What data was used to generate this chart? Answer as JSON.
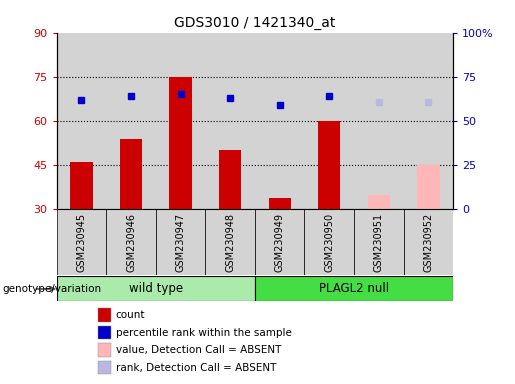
{
  "title": "GDS3010 / 1421340_at",
  "samples": [
    "GSM230945",
    "GSM230946",
    "GSM230947",
    "GSM230948",
    "GSM230949",
    "GSM230950",
    "GSM230951",
    "GSM230952"
  ],
  "bar_values": [
    46,
    54,
    75,
    50,
    34,
    60,
    null,
    null
  ],
  "bar_absent_values": [
    null,
    null,
    null,
    null,
    null,
    null,
    35,
    45
  ],
  "rank_values": [
    62,
    64,
    65,
    63,
    59,
    64,
    null,
    null
  ],
  "rank_absent_values": [
    null,
    null,
    null,
    null,
    null,
    null,
    61,
    61
  ],
  "bar_color": "#cc0000",
  "bar_absent_color": "#ffb6b6",
  "rank_color": "#0000cc",
  "rank_absent_color": "#b8b8e0",
  "ylim_left": [
    30,
    90
  ],
  "ylim_right": [
    0,
    100
  ],
  "left_ticks": [
    30,
    45,
    60,
    75,
    90
  ],
  "right_ticks": [
    0,
    25,
    50,
    75,
    100
  ],
  "right_tick_labels": [
    "0",
    "25",
    "50",
    "75",
    "100%"
  ],
  "groups": [
    {
      "label": "wild type",
      "spans": [
        0,
        3
      ],
      "color": "#aaeaaa"
    },
    {
      "label": "PLAGL2 null",
      "spans": [
        4,
        7
      ],
      "color": "#44dd44"
    }
  ],
  "genotype_label": "genotype/variation",
  "legend_items": [
    {
      "label": "count",
      "color": "#cc0000"
    },
    {
      "label": "percentile rank within the sample",
      "color": "#0000cc"
    },
    {
      "label": "value, Detection Call = ABSENT",
      "color": "#ffb6b6"
    },
    {
      "label": "rank, Detection Call = ABSENT",
      "color": "#b8b8e0"
    }
  ],
  "bar_width": 0.45,
  "dotted_gridlines": [
    45,
    60,
    75
  ],
  "col_bg_color": "#d3d3d3",
  "plot_bg_color": "#ffffff"
}
